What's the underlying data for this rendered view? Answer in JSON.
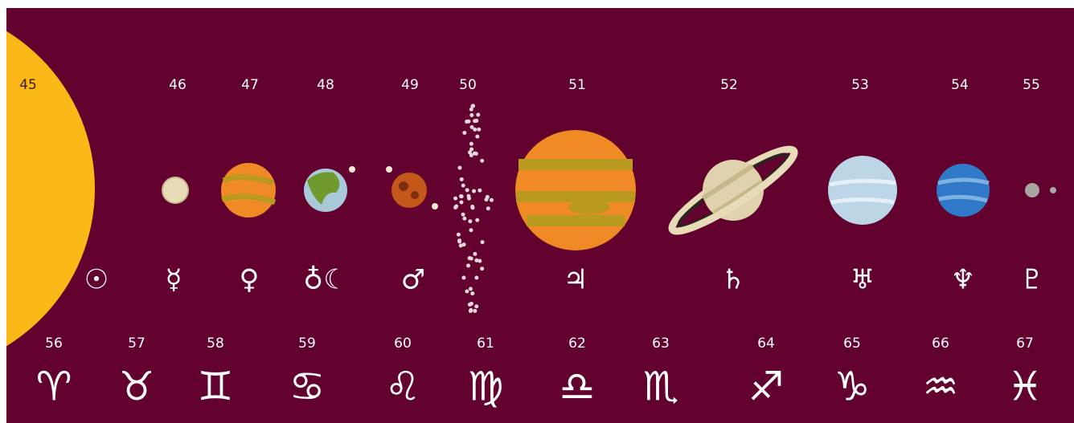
{
  "bodies": [
    {
      "number": 45,
      "symbol": "☉"
    },
    {
      "number": 46,
      "symbol": "☿"
    },
    {
      "number": 47,
      "symbol": "♀"
    },
    {
      "number": 48,
      "symbol": "♁☾"
    },
    {
      "number": 49,
      "symbol": "♂"
    },
    {
      "number": 50
    },
    {
      "number": 51,
      "symbol": "♃"
    },
    {
      "number": 52,
      "symbol": "♄"
    },
    {
      "number": 53,
      "symbol": "♅"
    },
    {
      "number": 54,
      "symbol": "♆"
    },
    {
      "number": 55,
      "symbol": "♇"
    }
  ],
  "zodiac": [
    {
      "number": 56,
      "symbol": "♈"
    },
    {
      "number": 57,
      "symbol": "♉"
    },
    {
      "number": 58,
      "symbol": "♊"
    },
    {
      "number": 59,
      "symbol": "♋"
    },
    {
      "number": 60,
      "symbol": "♌"
    },
    {
      "number": 61,
      "symbol": "♍"
    },
    {
      "number": 62,
      "symbol": "♎"
    },
    {
      "number": 63,
      "symbol": "♏"
    },
    {
      "number": 64,
      "symbol": "♐"
    },
    {
      "number": 65,
      "symbol": "♑"
    },
    {
      "number": 66,
      "symbol": "♒"
    },
    {
      "number": 67,
      "symbol": "♓"
    }
  ]
}
